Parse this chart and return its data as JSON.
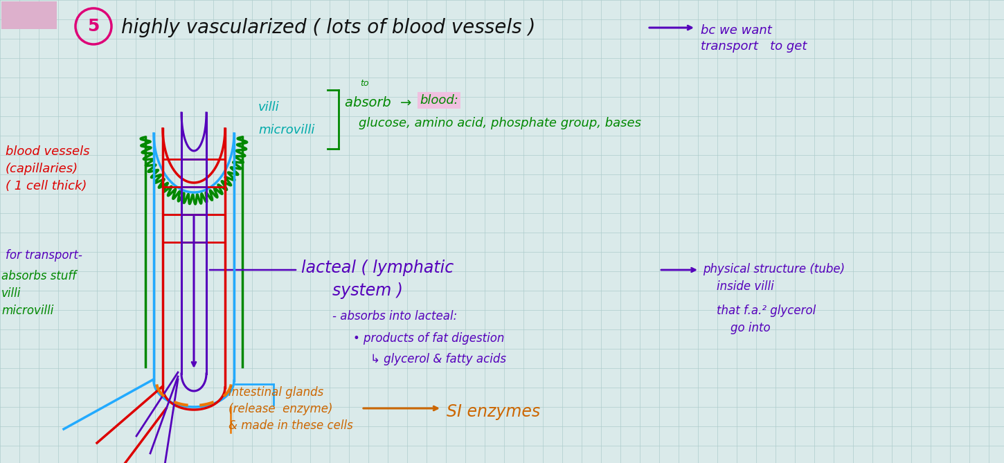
{
  "bg_color": "#daeaea",
  "grid_color": "#aecccc",
  "title_text": "highly vascularized ( lots of blood vessels )",
  "title_color": "#111111",
  "title_circle_color": "#dd0077",
  "arrow1_label": "bc we want\ntransport   to get",
  "arrow1_color": "#5500bb",
  "left_red_label": "blood vessels\n(capillaries)\n( 1 cell thick)",
  "left_red_color": "#dd0000",
  "left_purple_label": "for transport-",
  "left_purple_color": "#5500bb",
  "left_green_label": "absorbs stuff\nvilli\nmicrovilli",
  "left_green_color": "#008800",
  "bracket_label1": "villi",
  "bracket_label2": "microvilli",
  "bracket_color": "#00aaaa",
  "absorb_to": "to",
  "absorb_text": "absorb → blood:",
  "absorb_sub": "glucose, amino acid, phosphate group, bases",
  "absorb_color": "#008800",
  "blood_highlight": "#f0c0e0",
  "lacteal_label": "lacteal ( lymphatic\n           system )",
  "lacteal_color": "#5500bb",
  "lacteal_sub1": "- absorbs into lacteal:",
  "lacteal_sub2": "• products of fat digestion",
  "lacteal_sub3": "     ↳ glycerol & fatty acids",
  "lacteal_sub_color": "#5500bb",
  "phys_label": "→ physical structure (tube)\n        inside villi\n\n        that f.a.² glycerol\n             go into",
  "phys_color": "#5500bb",
  "intestinal_label": "intestinal glands\n(release  enzyme)\n& made in these cells",
  "intestinal_arrow_label": "SI enzymes",
  "intestinal_color": "#cc6600",
  "green_struct_color": "#008800",
  "blue_color": "#22aaff",
  "red_color": "#dd0000",
  "purple_color": "#5500bb",
  "orange_color": "#ee7700",
  "pink_rect": "#ddb0cc"
}
